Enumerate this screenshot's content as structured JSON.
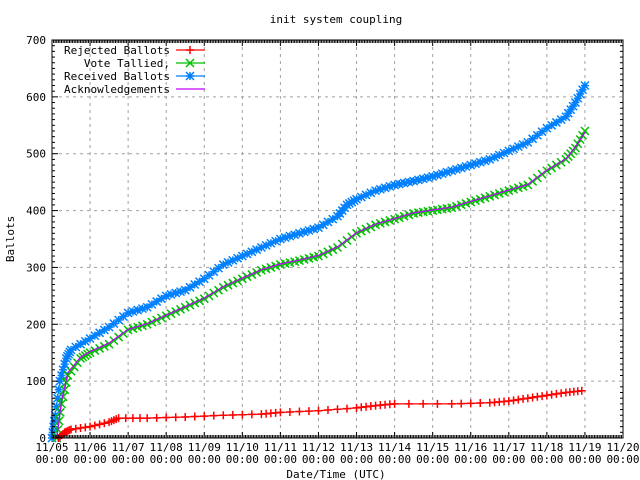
{
  "chart_data": {
    "type": "line",
    "title": "init system coupling",
    "xlabel": "Date/Time (UTC)",
    "ylabel": "Ballots",
    "xlim": [
      "11/05 00:00",
      "11/20 00:00"
    ],
    "ylim": [
      0,
      700
    ],
    "grid": true,
    "legend_position": "top-left",
    "x_ticks": [
      "11/05\n00:00",
      "11/06\n00:00",
      "11/07\n00:00",
      "11/08\n00:00",
      "11/09\n00:00",
      "11/10\n00:00",
      "11/11\n00:00",
      "11/12\n00:00",
      "11/13\n00:00",
      "11/14\n00:00",
      "11/15\n00:00",
      "11/16\n00:00",
      "11/17\n00:00",
      "11/18\n00:00",
      "11/19\n00:00",
      "11/20\n00:00"
    ],
    "y_ticks": [
      0,
      100,
      200,
      300,
      400,
      500,
      600,
      700
    ],
    "series": [
      {
        "name": "Rejected Ballots",
        "color": "#ff0000",
        "marker": "plus",
        "x": [
          "11/05 04:00",
          "11/05 08:00",
          "11/05 12:00",
          "11/06 00:00",
          "11/06 12:00",
          "11/06 18:00",
          "11/07 12:00",
          "11/08 12:00",
          "11/09 12:00",
          "11/10 12:00",
          "11/11 00:00",
          "11/12 00:00",
          "11/13 00:00",
          "11/13 12:00",
          "11/14 00:00",
          "11/15 12:00",
          "11/16 12:00",
          "11/17 00:00",
          "11/17 12:00",
          "11/18 00:00",
          "11/18 12:00",
          "11/18 22:00"
        ],
        "y": [
          0,
          10,
          15,
          20,
          28,
          35,
          35,
          37,
          40,
          42,
          45,
          48,
          53,
          57,
          60,
          60,
          62,
          65,
          70,
          75,
          80,
          83
        ]
      },
      {
        "name": "Vote Tallied,",
        "color": "#00c000",
        "marker": "cross",
        "x": [
          "11/05 03:00",
          "11/05 06:00",
          "11/05 10:00",
          "11/05 18:00",
          "11/06 00:00",
          "11/06 12:00",
          "11/07 00:00",
          "11/07 12:00",
          "11/08 00:00",
          "11/08 12:00",
          "11/09 00:00",
          "11/09 12:00",
          "11/10 00:00",
          "11/10 12:00",
          "11/11 00:00",
          "11/11 12:00",
          "11/12 00:00",
          "11/12 12:00",
          "11/13 00:00",
          "11/13 12:00",
          "11/14 00:00",
          "11/14 12:00",
          "11/15 00:00",
          "11/15 12:00",
          "11/16 00:00",
          "11/16 12:00",
          "11/17 00:00",
          "11/17 12:00",
          "11/18 00:00",
          "11/18 12:00",
          "11/18 18:00",
          "11/19 00:00"
        ],
        "y": [
          0,
          60,
          110,
          140,
          150,
          165,
          190,
          200,
          215,
          230,
          245,
          265,
          280,
          295,
          305,
          312,
          320,
          335,
          360,
          375,
          385,
          395,
          400,
          405,
          415,
          425,
          435,
          445,
          470,
          490,
          510,
          540
        ]
      },
      {
        "name": "Received Ballots",
        "color": "#0080ff",
        "marker": "star",
        "x": [
          "11/05 00:00",
          "11/05 02:00",
          "11/05 05:00",
          "11/05 09:00",
          "11/05 12:00",
          "11/06 00:00",
          "11/06 12:00",
          "11/07 00:00",
          "11/07 12:00",
          "11/08 00:00",
          "11/08 12:00",
          "11/09 00:00",
          "11/09 12:00",
          "11/10 00:00",
          "11/10 12:00",
          "11/11 00:00",
          "11/11 12:00",
          "11/12 00:00",
          "11/12 12:00",
          "11/12 18:00",
          "11/13 00:00",
          "11/13 12:00",
          "11/14 00:00",
          "11/14 12:00",
          "11/15 00:00",
          "11/15 12:00",
          "11/16 00:00",
          "11/16 12:00",
          "11/17 00:00",
          "11/17 12:00",
          "11/18 00:00",
          "11/18 12:00",
          "11/18 18:00",
          "11/19 00:00"
        ],
        "y": [
          0,
          40,
          100,
          140,
          155,
          175,
          195,
          220,
          230,
          250,
          260,
          280,
          305,
          320,
          335,
          350,
          360,
          370,
          390,
          410,
          420,
          435,
          445,
          452,
          460,
          470,
          480,
          490,
          505,
          520,
          545,
          565,
          590,
          620
        ]
      },
      {
        "name": "Acknowledgements",
        "color": "#c000ff",
        "marker": "none",
        "x": [
          "11/05 03:00",
          "11/05 06:00",
          "11/05 10:00",
          "11/05 18:00",
          "11/06 00:00",
          "11/06 12:00",
          "11/07 00:00",
          "11/07 12:00",
          "11/08 00:00",
          "11/08 12:00",
          "11/09 00:00",
          "11/09 12:00",
          "11/10 00:00",
          "11/10 12:00",
          "11/11 00:00",
          "11/11 12:00",
          "11/12 00:00",
          "11/12 12:00",
          "11/13 00:00",
          "11/13 12:00",
          "11/14 00:00",
          "11/14 12:00",
          "11/15 00:00",
          "11/15 12:00",
          "11/16 00:00",
          "11/16 12:00",
          "11/17 00:00",
          "11/17 12:00",
          "11/18 00:00",
          "11/18 12:00",
          "11/18 18:00",
          "11/19 00:00"
        ],
        "y": [
          0,
          65,
          115,
          142,
          152,
          167,
          191,
          201,
          216,
          231,
          246,
          266,
          281,
          296,
          306,
          313,
          321,
          336,
          361,
          376,
          386,
          396,
          401,
          406,
          416,
          426,
          436,
          446,
          471,
          491,
          512,
          538
        ]
      }
    ]
  }
}
